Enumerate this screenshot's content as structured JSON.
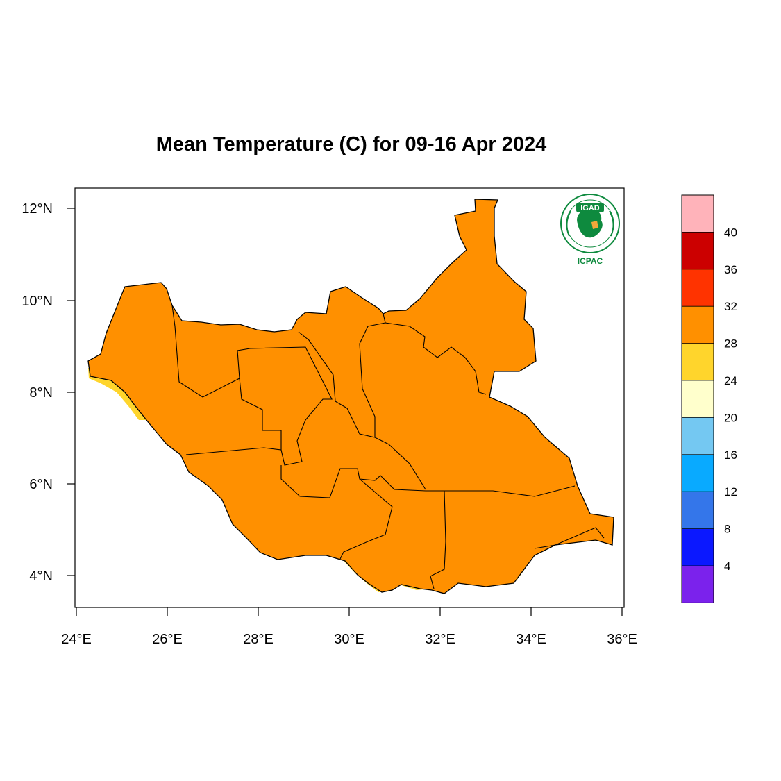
{
  "title": "Mean Temperature (C) for 09-16 Apr 2024",
  "map": {
    "region": "South Sudan",
    "lon_range": [
      24,
      36
    ],
    "lat_range": [
      3.5,
      12.4
    ],
    "x_ticks": [
      "24°E",
      "26°E",
      "28°E",
      "30°E",
      "32°E",
      "34°E",
      "36°E"
    ],
    "y_ticks": [
      "12°N",
      "10°N",
      "8°N",
      "6°N",
      "4°N"
    ]
  },
  "colorbar": {
    "labels": [
      "40",
      "36",
      "32",
      "28",
      "24",
      "20",
      "16",
      "12",
      "8",
      "4"
    ],
    "colors": [
      "#ffb3ba",
      "#cc0000",
      "#ff3300",
      "#ff9000",
      "#ffd52c",
      "#ffffcc",
      "#74c8f2",
      "#09aaff",
      "#3476ea",
      "#0b18ff",
      "#7b22ec"
    ]
  },
  "fill_colors": {
    "t28_32": "#ff9000",
    "t32_36": "#ff3300",
    "t24_28": "#ffd52c",
    "t20_24": "#ffffcc"
  },
  "logo": {
    "name": "IGAD",
    "subtitle": "ICPAC"
  }
}
